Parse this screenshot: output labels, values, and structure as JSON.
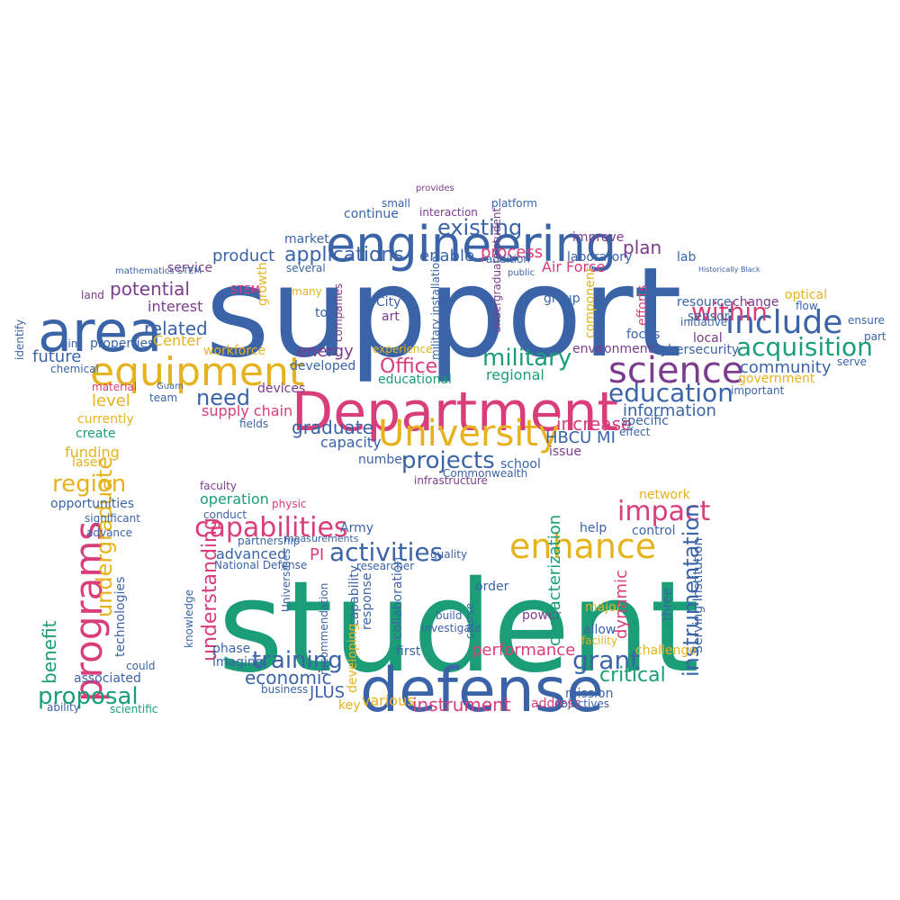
{
  "palette": {
    "blue": "#3b64a8",
    "pink": "#d93d7a",
    "yellow": "#e6b31e",
    "green": "#1b9d78",
    "purple": "#7b3c8e",
    "background": "#ffffff"
  },
  "shape": "graduation-cap",
  "words": [
    {
      "text": "support",
      "color": "blue"
    },
    {
      "text": "student",
      "color": "green"
    },
    {
      "text": "Department",
      "color": "pink"
    },
    {
      "text": "engineering",
      "color": "blue"
    },
    {
      "text": "defense",
      "color": "blue"
    },
    {
      "text": "area",
      "color": "blue"
    },
    {
      "text": "equipment",
      "color": "yellow"
    },
    {
      "text": "science",
      "color": "purple"
    },
    {
      "text": "University",
      "color": "yellow"
    },
    {
      "text": "include",
      "color": "blue"
    },
    {
      "text": "enhance",
      "color": "yellow"
    },
    {
      "text": "programs",
      "color": "pink"
    },
    {
      "text": "capabilities",
      "color": "pink"
    },
    {
      "text": "activities",
      "color": "blue"
    },
    {
      "text": "education",
      "color": "blue"
    },
    {
      "text": "acquisition",
      "color": "green"
    },
    {
      "text": "projects",
      "color": "blue"
    },
    {
      "text": "impact",
      "color": "pink"
    },
    {
      "text": "training",
      "color": "blue"
    },
    {
      "text": "military",
      "color": "green"
    },
    {
      "text": "proposal",
      "color": "green"
    },
    {
      "text": "applications",
      "color": "blue"
    },
    {
      "text": "region",
      "color": "yellow"
    },
    {
      "text": "grant",
      "color": "blue"
    },
    {
      "text": "instrumentation",
      "color": "blue"
    },
    {
      "text": "existing",
      "color": "blue"
    },
    {
      "text": "within",
      "color": "pink"
    },
    {
      "text": "need",
      "color": "blue"
    },
    {
      "text": "Office",
      "color": "pink"
    },
    {
      "text": "undergraduate",
      "color": "yellow"
    },
    {
      "text": "understanding",
      "color": "pink"
    },
    {
      "text": "economic",
      "color": "blue"
    },
    {
      "text": "critical",
      "color": "green"
    },
    {
      "text": "potential",
      "color": "purple"
    },
    {
      "text": "related",
      "color": "blue"
    },
    {
      "text": "graduate",
      "color": "blue"
    },
    {
      "text": "community",
      "color": "blue"
    },
    {
      "text": "information",
      "color": "blue"
    },
    {
      "text": "increase",
      "color": "pink"
    },
    {
      "text": "instrument",
      "color": "pink"
    },
    {
      "text": "performance",
      "color": "pink"
    },
    {
      "text": "HBCU MI",
      "color": "blue"
    },
    {
      "text": "plan",
      "color": "purple"
    },
    {
      "text": "process",
      "color": "pink"
    },
    {
      "text": "enable",
      "color": "blue"
    },
    {
      "text": "product",
      "color": "blue"
    },
    {
      "text": "future",
      "color": "blue"
    },
    {
      "text": "level",
      "color": "yellow"
    },
    {
      "text": "energy",
      "color": "purple"
    },
    {
      "text": "developed",
      "color": "blue"
    },
    {
      "text": "capacity",
      "color": "blue"
    },
    {
      "text": "regional",
      "color": "green"
    },
    {
      "text": "benefit",
      "color": "green"
    },
    {
      "text": "opportunities",
      "color": "blue"
    },
    {
      "text": "funding",
      "color": "yellow"
    },
    {
      "text": "Air Force",
      "color": "pink"
    },
    {
      "text": "laboratory",
      "color": "blue"
    },
    {
      "text": "continue",
      "color": "blue"
    },
    {
      "text": "market",
      "color": "blue"
    },
    {
      "text": "service",
      "color": "purple"
    },
    {
      "text": "interest",
      "color": "purple"
    },
    {
      "text": "Center",
      "color": "yellow"
    },
    {
      "text": "properties",
      "color": "blue"
    },
    {
      "text": "workforce",
      "color": "yellow"
    },
    {
      "text": "supply chain",
      "color": "pink"
    },
    {
      "text": "devices",
      "color": "purple"
    },
    {
      "text": "tool",
      "color": "blue"
    },
    {
      "text": "educational",
      "color": "green"
    },
    {
      "text": "school",
      "color": "blue"
    },
    {
      "text": "local",
      "color": "purple"
    },
    {
      "text": "resource",
      "color": "blue"
    },
    {
      "text": "change",
      "color": "purple"
    },
    {
      "text": "sensor",
      "color": "blue"
    },
    {
      "text": "initiative",
      "color": "blue"
    },
    {
      "text": "focus",
      "color": "blue"
    },
    {
      "text": "environment",
      "color": "purple"
    },
    {
      "text": "cybersecurity",
      "color": "blue"
    },
    {
      "text": "government",
      "color": "yellow"
    },
    {
      "text": "important",
      "color": "blue"
    },
    {
      "text": "specific",
      "color": "blue"
    },
    {
      "text": "effect",
      "color": "blue"
    },
    {
      "text": "ensure",
      "color": "blue"
    },
    {
      "text": "part",
      "color": "blue"
    },
    {
      "text": "optical",
      "color": "yellow"
    },
    {
      "text": "serve",
      "color": "blue"
    },
    {
      "text": "lab",
      "color": "blue"
    },
    {
      "text": "flow",
      "color": "blue"
    },
    {
      "text": "land",
      "color": "purple"
    },
    {
      "text": "aim",
      "color": "blue"
    },
    {
      "text": "chemical",
      "color": "blue"
    },
    {
      "text": "material",
      "color": "pink"
    },
    {
      "text": "team",
      "color": "blue"
    },
    {
      "text": "currently",
      "color": "yellow"
    },
    {
      "text": "create",
      "color": "green"
    },
    {
      "text": "laser",
      "color": "yellow"
    },
    {
      "text": "identify",
      "color": "blue"
    },
    {
      "text": "improve",
      "color": "purple"
    },
    {
      "text": "group",
      "color": "blue"
    },
    {
      "text": "number",
      "color": "blue"
    },
    {
      "text": "issue",
      "color": "purple"
    },
    {
      "text": "infrastructure",
      "color": "purple"
    },
    {
      "text": "City",
      "color": "blue"
    },
    {
      "text": "art",
      "color": "purple"
    },
    {
      "text": "several",
      "color": "blue"
    },
    {
      "text": "many",
      "color": "yellow"
    },
    {
      "text": "growth",
      "color": "yellow"
    },
    {
      "text": "STEM",
      "color": "pink"
    },
    {
      "text": "companies",
      "color": "purple"
    },
    {
      "text": "fields",
      "color": "blue"
    },
    {
      "text": "operation",
      "color": "green"
    },
    {
      "text": "faculty",
      "color": "purple"
    },
    {
      "text": "conduct",
      "color": "blue"
    },
    {
      "text": "advanced",
      "color": "blue"
    },
    {
      "text": "Army",
      "color": "blue"
    },
    {
      "text": "partnership",
      "color": "blue"
    },
    {
      "text": "PI",
      "color": "pink"
    },
    {
      "text": "National Defense",
      "color": "blue"
    },
    {
      "text": "measurements",
      "color": "blue"
    },
    {
      "text": "help",
      "color": "blue"
    },
    {
      "text": "control",
      "color": "blue"
    },
    {
      "text": "network",
      "color": "yellow"
    },
    {
      "text": "order",
      "color": "blue"
    },
    {
      "text": "quality",
      "color": "blue"
    },
    {
      "text": "researcher",
      "color": "blue"
    },
    {
      "text": "Universities",
      "color": "blue"
    },
    {
      "text": "capability",
      "color": "blue"
    },
    {
      "text": "response",
      "color": "blue"
    },
    {
      "text": "collaboration",
      "color": "blue"
    },
    {
      "text": "build",
      "color": "blue"
    },
    {
      "text": "power",
      "color": "purple"
    },
    {
      "text": "major",
      "color": "yellow"
    },
    {
      "text": "allow",
      "color": "blue"
    },
    {
      "text": "facility",
      "color": "yellow"
    },
    {
      "text": "dynamic",
      "color": "pink"
    },
    {
      "text": "challenge",
      "color": "yellow"
    },
    {
      "text": "three",
      "color": "blue"
    },
    {
      "text": "Serving Institution",
      "color": "blue"
    },
    {
      "text": "characterization",
      "color": "green"
    },
    {
      "text": "phase",
      "color": "blue"
    },
    {
      "text": "imaging",
      "color": "blue"
    },
    {
      "text": "developing",
      "color": "yellow"
    },
    {
      "text": "first",
      "color": "blue"
    },
    {
      "text": "JLUS",
      "color": "blue"
    },
    {
      "text": "various",
      "color": "yellow"
    },
    {
      "text": "key",
      "color": "yellow"
    },
    {
      "text": "mission",
      "color": "blue"
    },
    {
      "text": "address",
      "color": "pink"
    },
    {
      "text": "objectives",
      "color": "blue"
    },
    {
      "text": "business",
      "color": "blue"
    },
    {
      "text": "knowledge",
      "color": "blue"
    },
    {
      "text": "associated",
      "color": "blue"
    },
    {
      "text": "scientific",
      "color": "green"
    },
    {
      "text": "ability",
      "color": "blue"
    },
    {
      "text": "technologies",
      "color": "blue"
    },
    {
      "text": "could",
      "color": "blue"
    },
    {
      "text": "advance",
      "color": "blue"
    },
    {
      "text": "significant",
      "color": "blue"
    },
    {
      "text": "recommendation",
      "color": "blue"
    },
    {
      "text": "course",
      "color": "blue"
    },
    {
      "text": "investigate",
      "color": "blue"
    },
    {
      "text": "Commonwealth",
      "color": "blue"
    },
    {
      "text": "platform",
      "color": "blue"
    },
    {
      "text": "small",
      "color": "blue"
    },
    {
      "text": "interaction",
      "color": "purple"
    },
    {
      "text": "provides",
      "color": "purple"
    },
    {
      "text": "component",
      "color": "yellow"
    },
    {
      "text": "efforts",
      "color": "pink"
    },
    {
      "text": "military installation",
      "color": "blue"
    },
    {
      "text": "undergraduate student",
      "color": "purple"
    },
    {
      "text": "experience",
      "color": "yellow"
    },
    {
      "text": "Guam",
      "color": "blue"
    },
    {
      "text": "mathematics STEM",
      "color": "blue"
    },
    {
      "text": "physic",
      "color": "pink"
    },
    {
      "text": "addition",
      "color": "blue"
    },
    {
      "text": "public",
      "color": "blue"
    },
    {
      "text": "Historically Black",
      "color": "blue"
    }
  ]
}
